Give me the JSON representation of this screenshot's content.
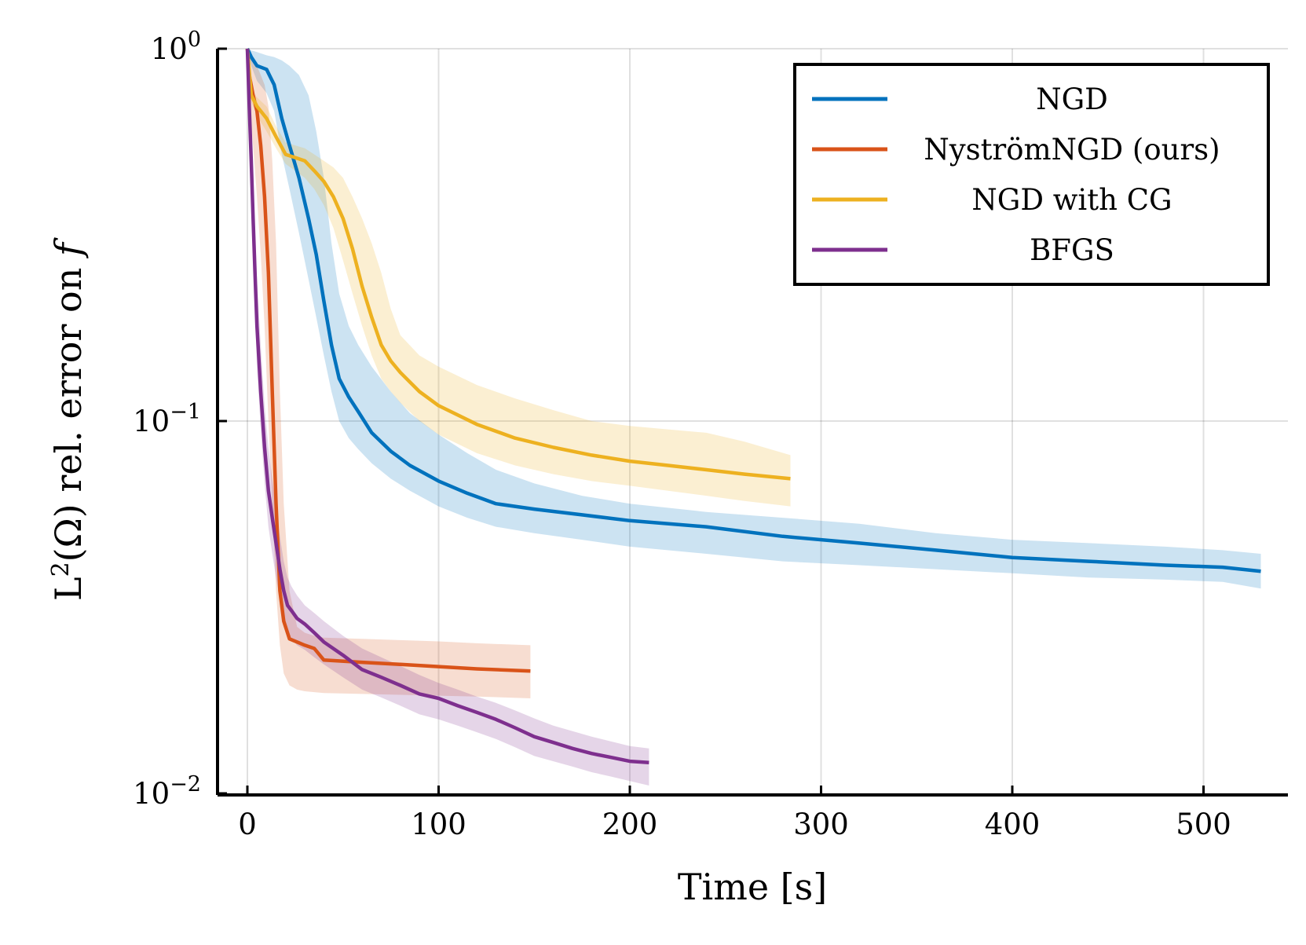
{
  "chart_data": {
    "type": "line",
    "xlabel": "Time [s]",
    "ylabel": "L²(Ω) rel. error on f",
    "ylabel_main": "L",
    "ylabel_sup": "2",
    "ylabel_mid": "(Ω) rel. error on ",
    "ylabel_var": "f",
    "yscale": "log",
    "xlim": [
      -15,
      545
    ],
    "ylim": [
      0.01,
      1.0
    ],
    "grid": true,
    "legend_position": "top-right",
    "xticks": [
      0,
      100,
      200,
      300,
      400,
      500
    ],
    "xtick_labels": [
      "0",
      "100",
      "200",
      "300",
      "400",
      "500"
    ],
    "yticks": [
      {
        "value": 1.0,
        "base": "10",
        "exp": "0"
      },
      {
        "value": 0.1,
        "base": "10",
        "exp": "−1"
      },
      {
        "value": 0.01,
        "base": "10",
        "exp": "−2"
      }
    ],
    "series": [
      {
        "name": "NGD",
        "color": "#0072bd",
        "x": [
          0,
          2,
          5,
          10,
          14,
          18,
          22,
          27,
          32,
          36,
          40,
          44,
          48,
          53,
          58,
          65,
          75,
          85,
          100,
          115,
          130,
          150,
          175,
          200,
          240,
          280,
          320,
          360,
          400,
          440,
          480,
          510,
          530
        ],
        "y": [
          1.0,
          0.95,
          0.9,
          0.88,
          0.8,
          0.65,
          0.55,
          0.45,
          0.35,
          0.28,
          0.21,
          0.16,
          0.13,
          0.116,
          0.106,
          0.093,
          0.083,
          0.076,
          0.069,
          0.064,
          0.06,
          0.058,
          0.056,
          0.054,
          0.052,
          0.049,
          0.047,
          0.045,
          0.043,
          0.042,
          0.041,
          0.0405,
          0.0395
        ],
        "band_upper": [
          1.0,
          0.99,
          0.98,
          0.96,
          0.95,
          0.93,
          0.9,
          0.85,
          0.75,
          0.6,
          0.45,
          0.3,
          0.22,
          0.18,
          0.16,
          0.14,
          0.12,
          0.105,
          0.092,
          0.082,
          0.074,
          0.068,
          0.063,
          0.06,
          0.057,
          0.055,
          0.053,
          0.05,
          0.048,
          0.047,
          0.046,
          0.045,
          0.044
        ],
        "band_lower": [
          1.0,
          0.9,
          0.82,
          0.76,
          0.68,
          0.52,
          0.42,
          0.32,
          0.24,
          0.19,
          0.15,
          0.12,
          0.1,
          0.09,
          0.084,
          0.077,
          0.07,
          0.065,
          0.059,
          0.055,
          0.052,
          0.05,
          0.048,
          0.046,
          0.044,
          0.042,
          0.041,
          0.04,
          0.039,
          0.038,
          0.0375,
          0.037,
          0.0355
        ]
      },
      {
        "name": "NyströmNGD (ours)",
        "color": "#d95319",
        "x": [
          0,
          1,
          3,
          5,
          7,
          9,
          11,
          13,
          15,
          17,
          19,
          22,
          26,
          30,
          35,
          40,
          60,
          80,
          100,
          120,
          148
        ],
        "y": [
          1.0,
          0.85,
          0.75,
          0.68,
          0.55,
          0.4,
          0.25,
          0.12,
          0.06,
          0.035,
          0.029,
          0.026,
          0.0255,
          0.025,
          0.0245,
          0.0228,
          0.0225,
          0.0222,
          0.0219,
          0.0216,
          0.0213
        ],
        "band_upper": [
          1.0,
          0.97,
          0.95,
          0.9,
          0.85,
          0.8,
          0.7,
          0.5,
          0.3,
          0.12,
          0.06,
          0.035,
          0.028,
          0.027,
          0.0265,
          0.0262,
          0.026,
          0.0258,
          0.0256,
          0.0253,
          0.025
        ],
        "band_lower": [
          1.0,
          0.7,
          0.55,
          0.4,
          0.28,
          0.18,
          0.1,
          0.06,
          0.035,
          0.025,
          0.021,
          0.0195,
          0.019,
          0.0188,
          0.0187,
          0.0186,
          0.0185,
          0.0184,
          0.0183,
          0.0182,
          0.018
        ]
      },
      {
        "name": "NGD with CG",
        "color": "#edb120",
        "x": [
          0,
          2,
          5,
          10,
          15,
          20,
          25,
          30,
          35,
          40,
          45,
          50,
          55,
          60,
          65,
          70,
          75,
          80,
          90,
          100,
          120,
          140,
          160,
          180,
          200,
          220,
          240,
          260,
          284
        ],
        "y": [
          1.0,
          0.75,
          0.7,
          0.65,
          0.58,
          0.52,
          0.51,
          0.5,
          0.47,
          0.44,
          0.4,
          0.35,
          0.29,
          0.23,
          0.19,
          0.16,
          0.145,
          0.135,
          0.12,
          0.11,
          0.098,
          0.09,
          0.085,
          0.081,
          0.078,
          0.076,
          0.074,
          0.072,
          0.07
        ],
        "band_upper": [
          1.0,
          0.78,
          0.74,
          0.7,
          0.62,
          0.56,
          0.55,
          0.54,
          0.52,
          0.5,
          0.48,
          0.45,
          0.4,
          0.35,
          0.3,
          0.25,
          0.2,
          0.17,
          0.15,
          0.14,
          0.125,
          0.115,
          0.107,
          0.1,
          0.097,
          0.095,
          0.093,
          0.088,
          0.081
        ],
        "band_lower": [
          1.0,
          0.72,
          0.66,
          0.6,
          0.54,
          0.49,
          0.47,
          0.45,
          0.42,
          0.38,
          0.33,
          0.27,
          0.22,
          0.18,
          0.15,
          0.13,
          0.12,
          0.112,
          0.1,
          0.092,
          0.082,
          0.076,
          0.072,
          0.069,
          0.067,
          0.065,
          0.063,
          0.061,
          0.059
        ]
      },
      {
        "name": "BFGS",
        "color": "#7e2f8e",
        "x": [
          0,
          1,
          2,
          3,
          4,
          5,
          7,
          9,
          11,
          13,
          15,
          17,
          19,
          21,
          23,
          26,
          30,
          35,
          40,
          50,
          60,
          70,
          80,
          90,
          100,
          110,
          120,
          130,
          140,
          150,
          160,
          170,
          180,
          190,
          200,
          210
        ],
        "y": [
          1.0,
          0.7,
          0.5,
          0.35,
          0.25,
          0.18,
          0.12,
          0.085,
          0.065,
          0.055,
          0.047,
          0.04,
          0.035,
          0.032,
          0.031,
          0.0295,
          0.0285,
          0.027,
          0.0255,
          0.0235,
          0.0215,
          0.0205,
          0.0195,
          0.0185,
          0.018,
          0.0172,
          0.0165,
          0.0158,
          0.015,
          0.0142,
          0.0137,
          0.0132,
          0.0128,
          0.0125,
          0.0122,
          0.0121
        ],
        "band_upper": [
          1.0,
          0.8,
          0.6,
          0.45,
          0.33,
          0.24,
          0.16,
          0.11,
          0.085,
          0.07,
          0.058,
          0.049,
          0.042,
          0.038,
          0.036,
          0.034,
          0.032,
          0.0305,
          0.029,
          0.0265,
          0.0245,
          0.0232,
          0.022,
          0.0208,
          0.0198,
          0.019,
          0.0182,
          0.0175,
          0.0167,
          0.0159,
          0.0152,
          0.0147,
          0.0142,
          0.0138,
          0.0134,
          0.0132
        ],
        "band_lower": [
          1.0,
          0.6,
          0.4,
          0.28,
          0.2,
          0.14,
          0.095,
          0.068,
          0.052,
          0.044,
          0.038,
          0.033,
          0.029,
          0.027,
          0.026,
          0.025,
          0.0243,
          0.0232,
          0.0222,
          0.0205,
          0.019,
          0.0181,
          0.0172,
          0.0163,
          0.0158,
          0.0152,
          0.0146,
          0.014,
          0.0133,
          0.0126,
          0.0122,
          0.0118,
          0.0114,
          0.0111,
          0.0108,
          0.0105
        ]
      }
    ]
  }
}
